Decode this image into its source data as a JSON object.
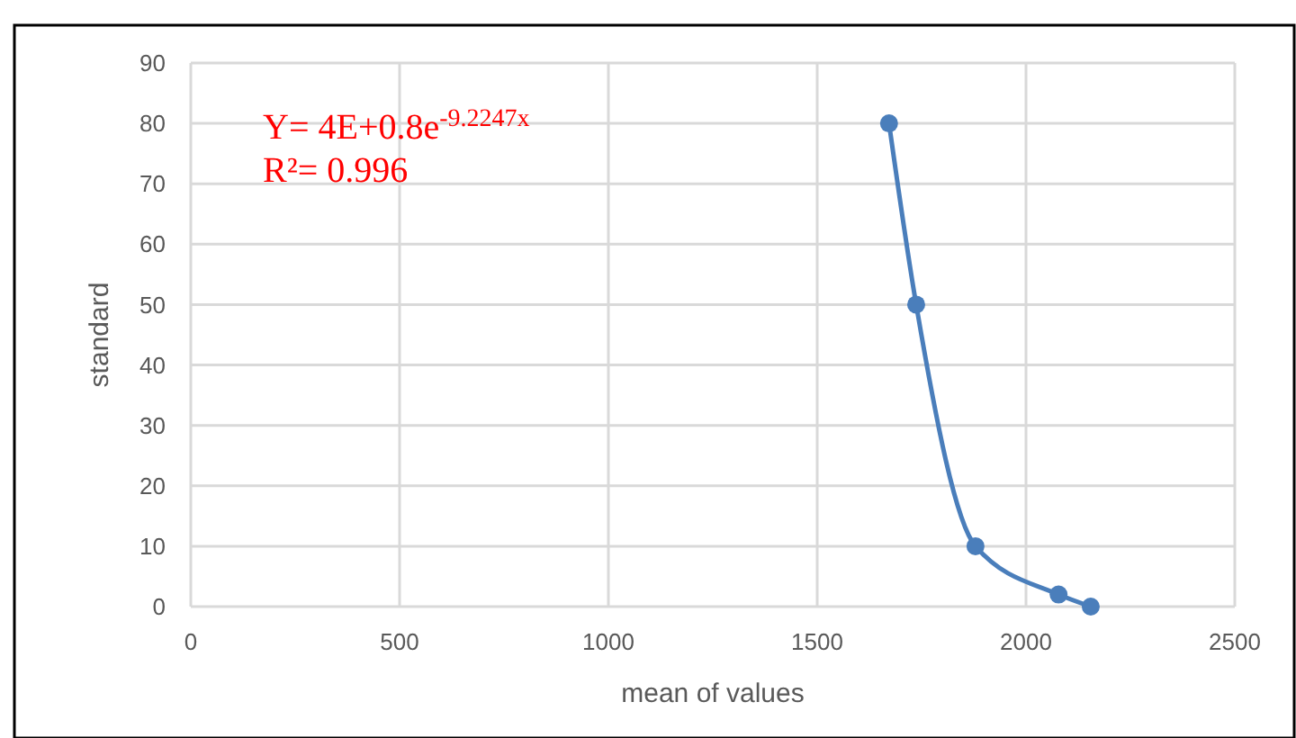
{
  "chart_data": {
    "type": "line",
    "xlabel": "mean of values",
    "ylabel": "standard",
    "x": [
      1672,
      1737,
      1879,
      2078,
      2155
    ],
    "series": [
      {
        "color": "#4a7ebb",
        "values": [
          80,
          50,
          10,
          2,
          0
        ]
      }
    ],
    "xlim": [
      0,
      2500
    ],
    "xticks": [
      0,
      500,
      1000,
      1500,
      2000,
      2500
    ],
    "ylim": [
      0,
      90
    ],
    "yticks": [
      0,
      10,
      20,
      30,
      40,
      50,
      60,
      70,
      80,
      90
    ],
    "grid": true,
    "marker": "circle",
    "line_style": "solid",
    "annotations": [
      "Y= 4E+0.8e$^{-9.2247x}$",
      "R²= 0.996"
    ]
  }
}
